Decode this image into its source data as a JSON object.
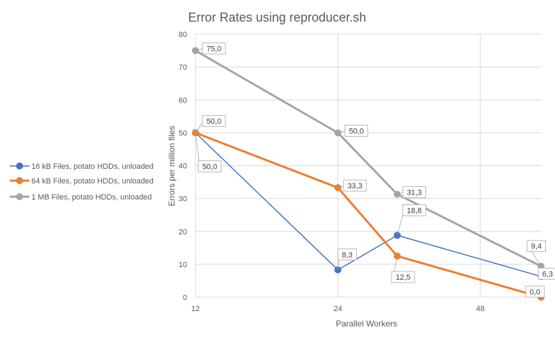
{
  "chart_data": {
    "type": "line",
    "title": "Error Rates using reproducer.sh",
    "xlabel": "Parallel Workers",
    "ylabel": "Errors per million files",
    "x": [
      12,
      24,
      32,
      48
    ],
    "x_ticks": [
      "12",
      "24",
      "48"
    ],
    "ylim": [
      0,
      80
    ],
    "y_ticks": [
      "0",
      "10",
      "20",
      "30",
      "40",
      "50",
      "60",
      "70",
      "80"
    ],
    "grid": true,
    "legend_position": "left",
    "series": [
      {
        "name": "16 kB Files, potato HDDs, unloaded",
        "color": "#4472C4",
        "x": [
          12,
          24,
          32,
          48
        ],
        "values": [
          50.0,
          8.3,
          18.8,
          6.3
        ],
        "labels": [
          "50,0",
          "8,3",
          "18,8",
          "6,3"
        ]
      },
      {
        "name": "64 kB Files, potato HDDs, unloaded",
        "color": "#ED7D31",
        "x": [
          12,
          24,
          32,
          48
        ],
        "values": [
          50.0,
          33.3,
          12.5,
          0.0
        ],
        "labels": [
          "",
          "33,3",
          "12,5",
          "0,0"
        ]
      },
      {
        "name": "1 MB Files, potato HDDs, unloaded",
        "color": "#A5A5A5",
        "x": [
          12,
          24,
          32,
          48
        ],
        "values": [
          75.0,
          50.0,
          31.3,
          9.4
        ],
        "labels": [
          "75,0",
          "50,0",
          "31,3",
          "9,4"
        ]
      }
    ],
    "extra_labels": [
      "50,0"
    ]
  }
}
